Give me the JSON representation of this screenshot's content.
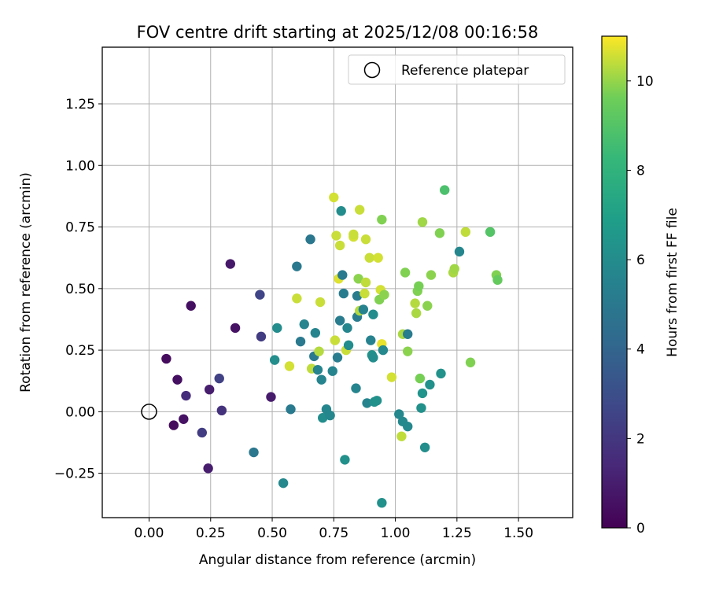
{
  "chart_data": {
    "type": "scatter",
    "title": "FOV centre drift starting at 2025/12/08 00:16:58",
    "xlabel": "Angular distance from reference (arcmin)",
    "ylabel": "Rotation from reference (arcmin)",
    "xlim": [
      -0.19,
      1.72
    ],
    "ylim": [
      -0.43,
      1.48
    ],
    "x_ticks": [
      0.0,
      0.25,
      0.5,
      0.75,
      1.0,
      1.25,
      1.5
    ],
    "x_tick_labels": [
      "0.00",
      "0.25",
      "0.50",
      "0.75",
      "1.00",
      "1.25",
      "1.50"
    ],
    "y_ticks": [
      -0.25,
      0.0,
      0.25,
      0.5,
      0.75,
      1.0,
      1.25
    ],
    "y_tick_labels": [
      "−0.25",
      "0.00",
      "0.25",
      "0.50",
      "0.75",
      "1.00",
      "1.25"
    ],
    "grid": true,
    "legend": {
      "placement": "top-right",
      "entries": [
        "Reference platepar"
      ]
    },
    "reference_point": {
      "x": 0.0,
      "y": 0.0
    },
    "colorbar": {
      "label": "Hours from first FF file",
      "colormap": "viridis",
      "range": [
        0,
        11
      ],
      "ticks": [
        0,
        2,
        4,
        6,
        8,
        10
      ],
      "tick_labels": [
        "0",
        "2",
        "4",
        "6",
        "8",
        "10"
      ]
    },
    "points": [
      {
        "x": 0.07,
        "y": 0.215,
        "h": 0.4
      },
      {
        "x": 0.1,
        "y": -0.055,
        "h": 0.3
      },
      {
        "x": 0.115,
        "y": 0.13,
        "h": 0.5
      },
      {
        "x": 0.14,
        "y": -0.03,
        "h": 0.6
      },
      {
        "x": 0.15,
        "y": 0.065,
        "h": 1.6
      },
      {
        "x": 0.17,
        "y": 0.43,
        "h": 0.5
      },
      {
        "x": 0.215,
        "y": -0.085,
        "h": 2.2
      },
      {
        "x": 0.24,
        "y": -0.23,
        "h": 1.0
      },
      {
        "x": 0.245,
        "y": 0.09,
        "h": 1.0
      },
      {
        "x": 0.285,
        "y": 0.135,
        "h": 2.4
      },
      {
        "x": 0.295,
        "y": 0.005,
        "h": 1.8
      },
      {
        "x": 0.33,
        "y": 0.6,
        "h": 0.8
      },
      {
        "x": 0.35,
        "y": 0.34,
        "h": 0.6
      },
      {
        "x": 0.425,
        "y": -0.165,
        "h": 4.9
      },
      {
        "x": 0.45,
        "y": 0.475,
        "h": 2.6
      },
      {
        "x": 0.455,
        "y": 0.305,
        "h": 2.2
      },
      {
        "x": 0.495,
        "y": 0.06,
        "h": 0.9
      },
      {
        "x": 0.51,
        "y": 0.21,
        "h": 6.1
      },
      {
        "x": 0.52,
        "y": 0.34,
        "h": 6.0
      },
      {
        "x": 0.545,
        "y": -0.29,
        "h": 5.8
      },
      {
        "x": 0.57,
        "y": 0.185,
        "h": 10.6
      },
      {
        "x": 0.575,
        "y": 0.01,
        "h": 5.1
      },
      {
        "x": 0.6,
        "y": 0.46,
        "h": 10.5
      },
      {
        "x": 0.6,
        "y": 0.59,
        "h": 5.0
      },
      {
        "x": 0.615,
        "y": 0.285,
        "h": 5.0
      },
      {
        "x": 0.63,
        "y": 0.355,
        "h": 5.6
      },
      {
        "x": 0.655,
        "y": 0.7,
        "h": 4.9
      },
      {
        "x": 0.66,
        "y": 0.175,
        "h": 10.4
      },
      {
        "x": 0.67,
        "y": 0.225,
        "h": 5.0
      },
      {
        "x": 0.675,
        "y": 0.32,
        "h": 5.6
      },
      {
        "x": 0.685,
        "y": 0.17,
        "h": 5.6
      },
      {
        "x": 0.69,
        "y": 0.245,
        "h": 10.3
      },
      {
        "x": 0.695,
        "y": 0.445,
        "h": 10.5
      },
      {
        "x": 0.7,
        "y": 0.13,
        "h": 5.6
      },
      {
        "x": 0.705,
        "y": -0.025,
        "h": 6.0
      },
      {
        "x": 0.72,
        "y": 0.01,
        "h": 5.7
      },
      {
        "x": 0.735,
        "y": -0.015,
        "h": 5.7
      },
      {
        "x": 0.745,
        "y": 0.165,
        "h": 5.6
      },
      {
        "x": 0.75,
        "y": 0.87,
        "h": 10.6
      },
      {
        "x": 0.755,
        "y": 0.29,
        "h": 10.5
      },
      {
        "x": 0.76,
        "y": 0.715,
        "h": 10.5
      },
      {
        "x": 0.765,
        "y": 0.22,
        "h": 5.2
      },
      {
        "x": 0.77,
        "y": 0.54,
        "h": 10.7
      },
      {
        "x": 0.775,
        "y": 0.37,
        "h": 5.2
      },
      {
        "x": 0.775,
        "y": 0.675,
        "h": 10.5
      },
      {
        "x": 0.78,
        "y": 0.815,
        "h": 6.0
      },
      {
        "x": 0.785,
        "y": 0.555,
        "h": 5.1
      },
      {
        "x": 0.79,
        "y": 0.48,
        "h": 5.2
      },
      {
        "x": 0.795,
        "y": -0.195,
        "h": 6.2
      },
      {
        "x": 0.8,
        "y": 0.25,
        "h": 10.5
      },
      {
        "x": 0.805,
        "y": 0.34,
        "h": 5.7
      },
      {
        "x": 0.81,
        "y": 0.27,
        "h": 6.0
      },
      {
        "x": 0.83,
        "y": 0.71,
        "h": 10.6
      },
      {
        "x": 0.83,
        "y": 0.72,
        "h": 10.5
      },
      {
        "x": 0.84,
        "y": 0.095,
        "h": 5.6
      },
      {
        "x": 0.845,
        "y": 0.47,
        "h": 5.2
      },
      {
        "x": 0.845,
        "y": 0.385,
        "h": 5.2
      },
      {
        "x": 0.85,
        "y": 0.54,
        "h": 9.9
      },
      {
        "x": 0.855,
        "y": 0.82,
        "h": 10.5
      },
      {
        "x": 0.855,
        "y": 0.41,
        "h": 10.3
      },
      {
        "x": 0.87,
        "y": 0.415,
        "h": 5.5
      },
      {
        "x": 0.875,
        "y": 0.48,
        "h": 10.5
      },
      {
        "x": 0.88,
        "y": 0.525,
        "h": 10.4
      },
      {
        "x": 0.88,
        "y": 0.7,
        "h": 10.5
      },
      {
        "x": 0.885,
        "y": 0.035,
        "h": 5.6
      },
      {
        "x": 0.895,
        "y": 0.625,
        "h": 10.5
      },
      {
        "x": 0.9,
        "y": 0.29,
        "h": 5.5
      },
      {
        "x": 0.905,
        "y": 0.23,
        "h": 6.3
      },
      {
        "x": 0.91,
        "y": 0.22,
        "h": 6.0
      },
      {
        "x": 0.91,
        "y": 0.395,
        "h": 6.0
      },
      {
        "x": 0.915,
        "y": 0.04,
        "h": 6.2
      },
      {
        "x": 0.925,
        "y": 0.045,
        "h": 6.2
      },
      {
        "x": 0.93,
        "y": 0.625,
        "h": 10.6
      },
      {
        "x": 0.935,
        "y": 0.455,
        "h": 9.8
      },
      {
        "x": 0.94,
        "y": 0.495,
        "h": 10.6
      },
      {
        "x": 0.945,
        "y": 0.275,
        "h": 10.8
      },
      {
        "x": 0.945,
        "y": 0.78,
        "h": 9.8
      },
      {
        "x": 0.945,
        "y": -0.37,
        "h": 6.2
      },
      {
        "x": 0.95,
        "y": 0.25,
        "h": 5.8
      },
      {
        "x": 0.955,
        "y": 0.475,
        "h": 9.9
      },
      {
        "x": 0.985,
        "y": 0.14,
        "h": 10.6
      },
      {
        "x": 1.015,
        "y": -0.01,
        "h": 5.8
      },
      {
        "x": 1.025,
        "y": -0.1,
        "h": 10.4
      },
      {
        "x": 1.03,
        "y": -0.04,
        "h": 5.8
      },
      {
        "x": 1.03,
        "y": 0.315,
        "h": 10.2
      },
      {
        "x": 1.04,
        "y": 0.565,
        "h": 9.8
      },
      {
        "x": 1.05,
        "y": -0.06,
        "h": 5.8
      },
      {
        "x": 1.05,
        "y": 0.315,
        "h": 5.2
      },
      {
        "x": 1.05,
        "y": 0.245,
        "h": 9.9
      },
      {
        "x": 1.08,
        "y": 0.44,
        "h": 10.3
      },
      {
        "x": 1.085,
        "y": 0.4,
        "h": 10.2
      },
      {
        "x": 1.09,
        "y": 0.49,
        "h": 9.8
      },
      {
        "x": 1.095,
        "y": 0.51,
        "h": 9.7
      },
      {
        "x": 1.1,
        "y": 0.135,
        "h": 9.7
      },
      {
        "x": 1.105,
        "y": 0.015,
        "h": 6.2
      },
      {
        "x": 1.11,
        "y": 0.075,
        "h": 6.4
      },
      {
        "x": 1.11,
        "y": 0.77,
        "h": 10.1
      },
      {
        "x": 1.12,
        "y": -0.145,
        "h": 6.1
      },
      {
        "x": 1.13,
        "y": 0.43,
        "h": 9.9
      },
      {
        "x": 1.14,
        "y": 0.11,
        "h": 6.2
      },
      {
        "x": 1.145,
        "y": 0.555,
        "h": 9.9
      },
      {
        "x": 1.18,
        "y": 0.725,
        "h": 9.8
      },
      {
        "x": 1.185,
        "y": 0.155,
        "h": 6.3
      },
      {
        "x": 1.2,
        "y": 0.9,
        "h": 8.8
      },
      {
        "x": 1.235,
        "y": 0.565,
        "h": 10.2
      },
      {
        "x": 1.24,
        "y": 0.58,
        "h": 10.1
      },
      {
        "x": 1.26,
        "y": 0.65,
        "h": 5.7
      },
      {
        "x": 1.285,
        "y": 0.73,
        "h": 10.4
      },
      {
        "x": 1.305,
        "y": 0.2,
        "h": 9.8
      },
      {
        "x": 1.385,
        "y": 0.73,
        "h": 9.0
      },
      {
        "x": 1.41,
        "y": 0.555,
        "h": 9.8
      },
      {
        "x": 1.415,
        "y": 0.535,
        "h": 9.4
      }
    ]
  }
}
